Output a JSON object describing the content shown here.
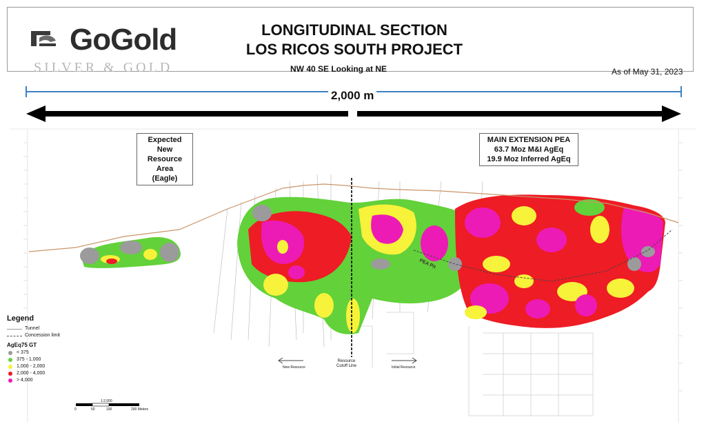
{
  "header": {
    "logo_word": "GoGold",
    "logo_tagline": "SILVER & GOLD",
    "title_line1": "LONGITUDINAL SECTION",
    "title_line2": "LOS RICOS SOUTH PROJECT",
    "subtitle": "NW 40 SE Looking at NE",
    "as_of": "As of May 31, 2023"
  },
  "scale": {
    "label": "2,000 m"
  },
  "annotations": {
    "eagle": [
      "Expected New",
      "Resource Area",
      "(Eagle)"
    ],
    "main_pea": [
      "MAIN EXTENSION PEA",
      "63.7 Moz M&I AgEq",
      "19.9 Moz Inferred AgEq"
    ],
    "pea_pit": "PEA Pit",
    "cutoff": [
      "Resource",
      "Cutoff Line"
    ],
    "new_resource": "New Resource",
    "initial_resource": "Initial Resource"
  },
  "legend": {
    "title": "Legend",
    "lines": [
      {
        "label": "Tunnel",
        "color": "#9a9a9a",
        "style": "solid"
      },
      {
        "label": "Concession limit",
        "color": "#555555",
        "style": "dashed"
      }
    ],
    "grade_title": "AgEq75 GT",
    "grades": [
      {
        "label": "< 375",
        "color": "#9b9b9b"
      },
      {
        "label": "375 - 1,000",
        "color": "#63d13a"
      },
      {
        "label": "1,000 - 2,000",
        "color": "#f7f23a"
      },
      {
        "label": "2,000 - 4,000",
        "color": "#ee1c24"
      },
      {
        "label": "> 4,000",
        "color": "#ec1bb5"
      }
    ]
  },
  "scalebar": {
    "ratio": "1:2,000",
    "ticks": [
      "0",
      "50",
      "100",
      "200 Meters"
    ]
  },
  "colors": {
    "grey": "#9b9b9b",
    "green": "#63d13a",
    "yellow": "#f7f23a",
    "red": "#ee1c24",
    "magenta": "#ec1bb5",
    "blue_line": "#3d7fc4"
  }
}
